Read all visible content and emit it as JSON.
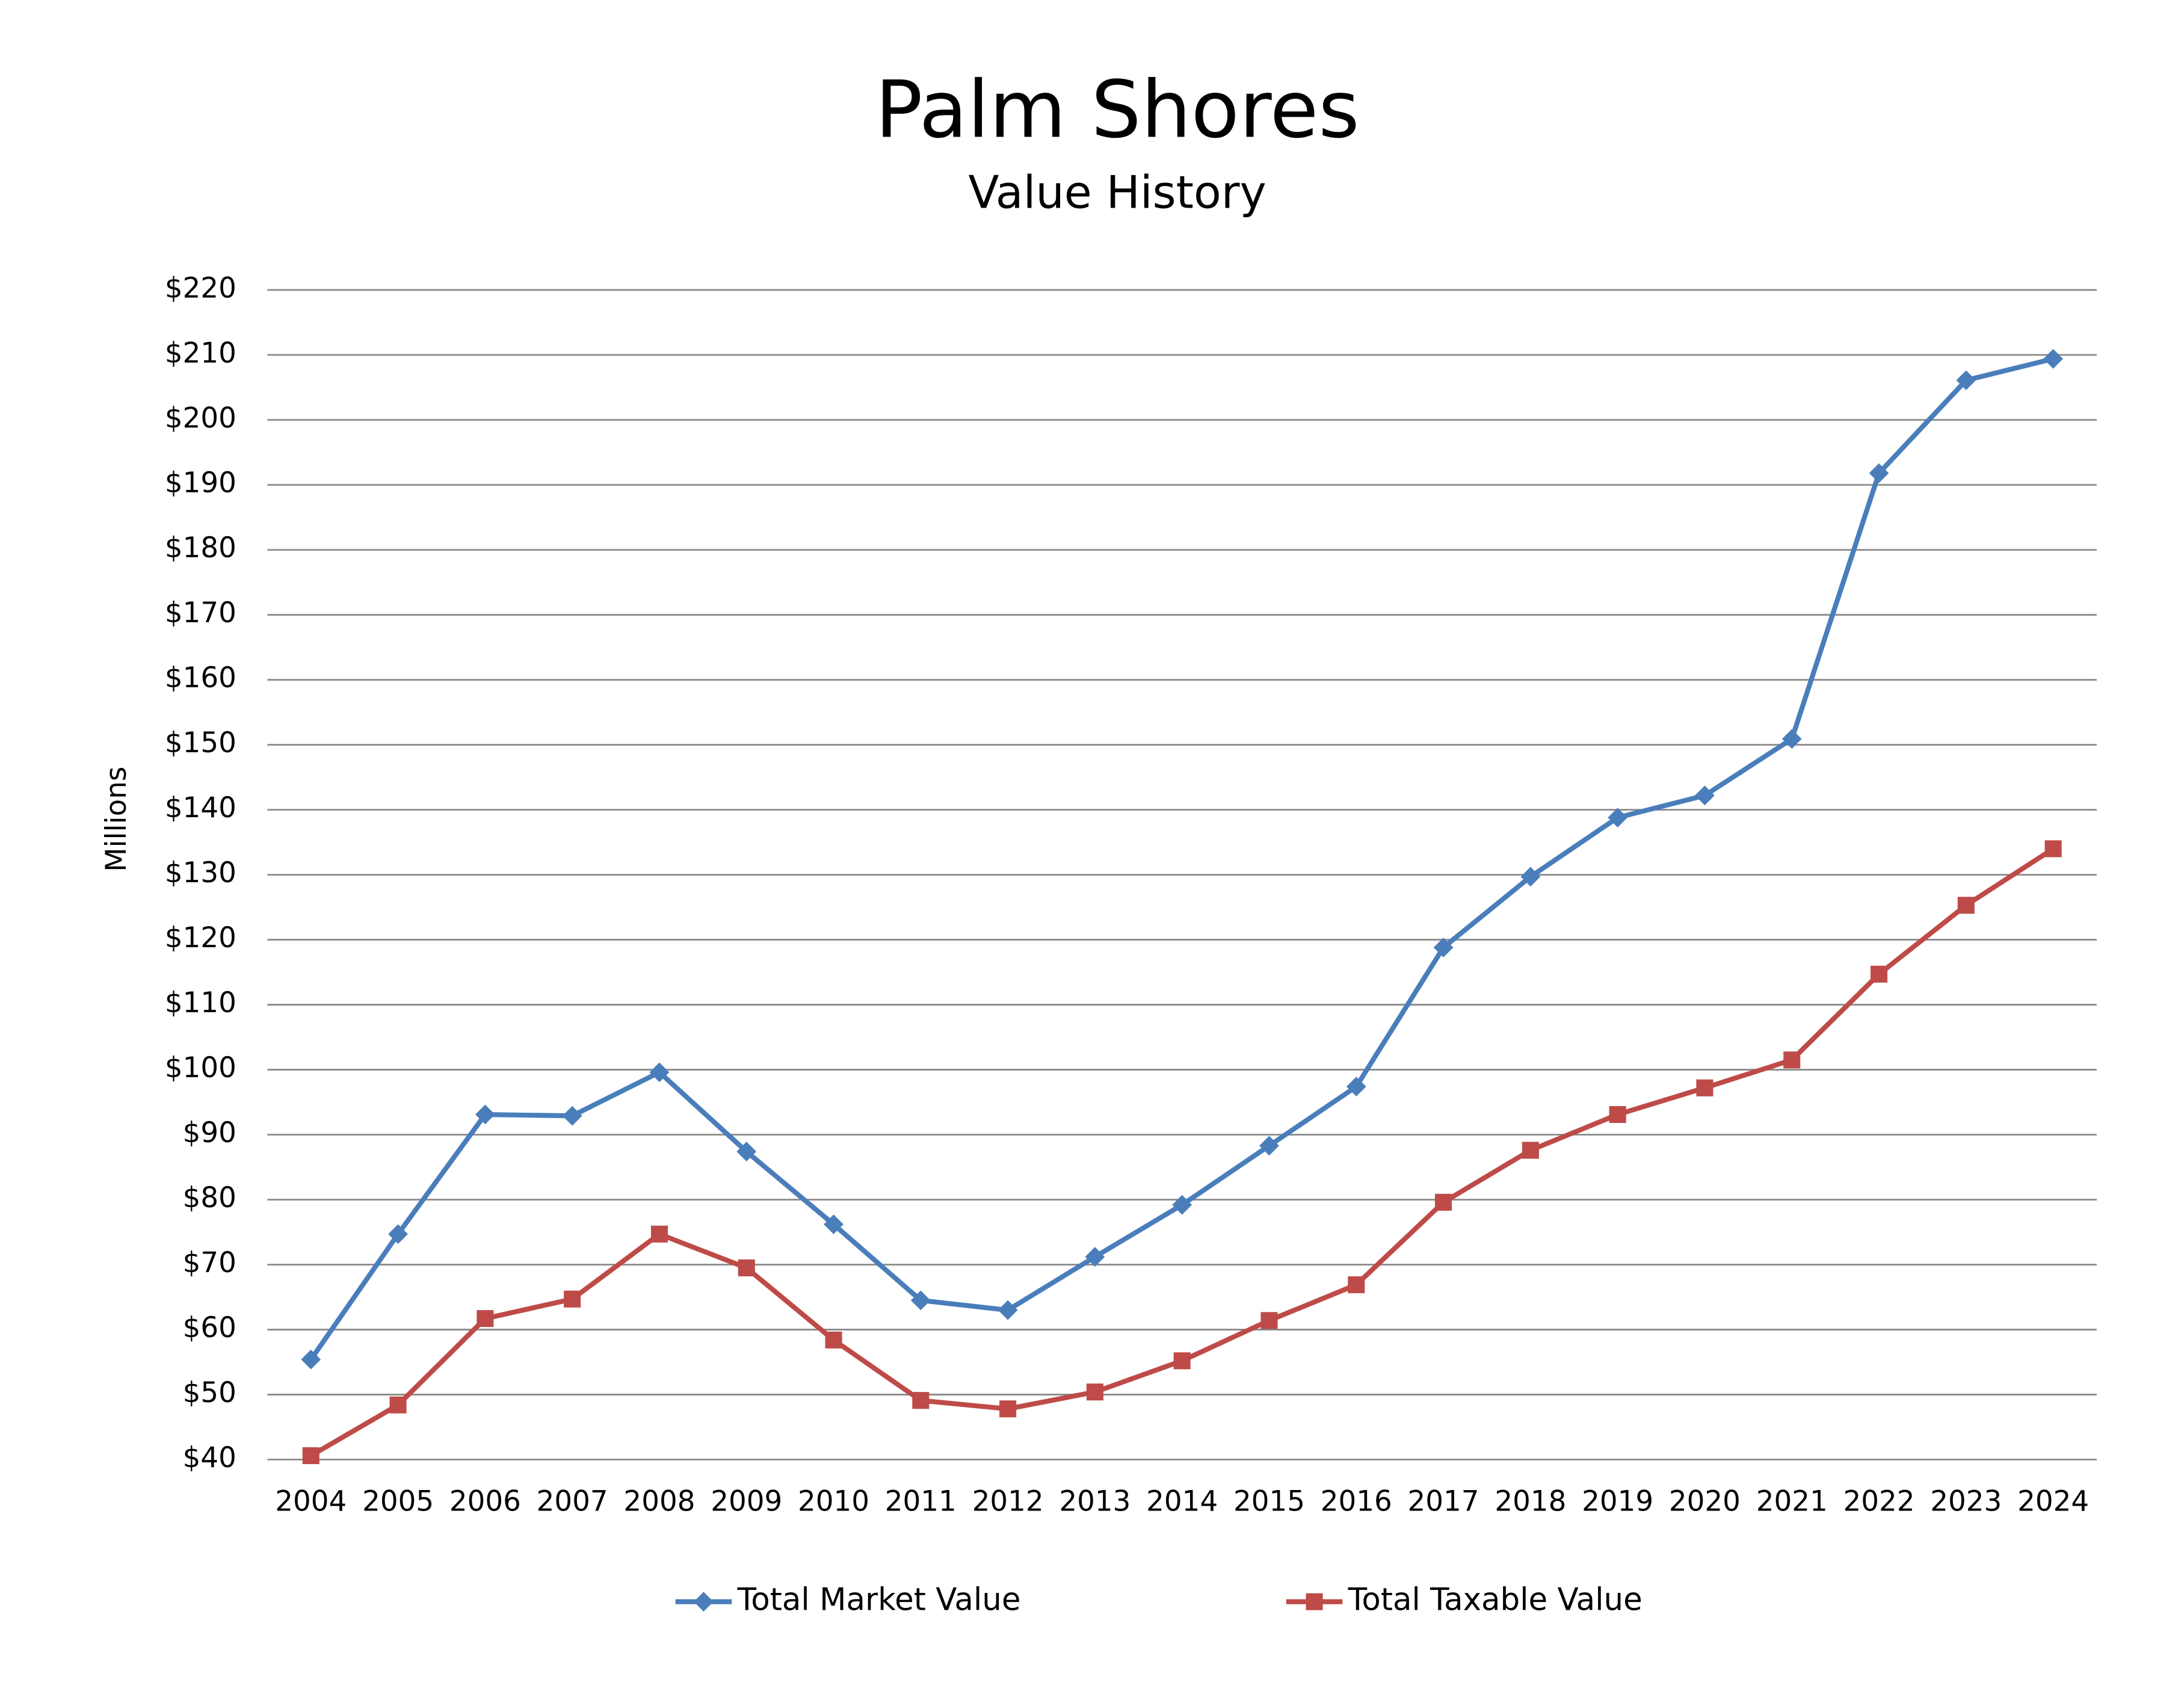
{
  "chart_data": {
    "type": "line",
    "title": "Palm Shores",
    "subtitle": "Value History",
    "y_label": "Millions",
    "categories": [
      "2004",
      "2005",
      "2006",
      "2007",
      "2008",
      "2009",
      "2010",
      "2011",
      "2012",
      "2013",
      "2014",
      "2015",
      "2016",
      "2017",
      "2018",
      "2019",
      "2020",
      "2021",
      "2022",
      "2023",
      "2024"
    ],
    "series": [
      {
        "name": "Total Market Value",
        "color": "#4a7ebb",
        "marker": "diamond",
        "values": [
          55.4,
          74.7,
          93.1,
          92.9,
          99.6,
          87.4,
          76.2,
          64.5,
          63.0,
          71.2,
          79.2,
          88.3,
          97.4,
          118.8,
          129.7,
          138.8,
          142.2,
          150.9,
          191.8,
          206.1,
          209.4
        ]
      },
      {
        "name": "Total Taxable Value",
        "color": "#be4b48",
        "marker": "square",
        "values": [
          40.6,
          48.4,
          61.7,
          64.7,
          74.7,
          69.5,
          58.4,
          49.1,
          47.8,
          50.4,
          55.2,
          61.4,
          66.9,
          79.6,
          87.6,
          93.1,
          97.2,
          101.5,
          114.7,
          125.3,
          134.0
        ]
      }
    ],
    "ylim": [
      40,
      220
    ],
    "yticks": [
      {
        "value": 40,
        "label": "$40"
      },
      {
        "value": 50,
        "label": "$50"
      },
      {
        "value": 60,
        "label": "$60"
      },
      {
        "value": 70,
        "label": "$70"
      },
      {
        "value": 80,
        "label": "$80"
      },
      {
        "value": 90,
        "label": "$90"
      },
      {
        "value": 100,
        "label": "$100"
      },
      {
        "value": 110,
        "label": "$110"
      },
      {
        "value": 120,
        "label": "$120"
      },
      {
        "value": 130,
        "label": "$130"
      },
      {
        "value": 140,
        "label": "$140"
      },
      {
        "value": 150,
        "label": "$150"
      },
      {
        "value": 160,
        "label": "$160"
      },
      {
        "value": 170,
        "label": "$170"
      },
      {
        "value": 180,
        "label": "$180"
      },
      {
        "value": 190,
        "label": "$190"
      },
      {
        "value": 200,
        "label": "$200"
      },
      {
        "value": 210,
        "label": "$210"
      },
      {
        "value": 220,
        "label": "$220"
      }
    ],
    "grid": true,
    "legend": "bottom"
  }
}
